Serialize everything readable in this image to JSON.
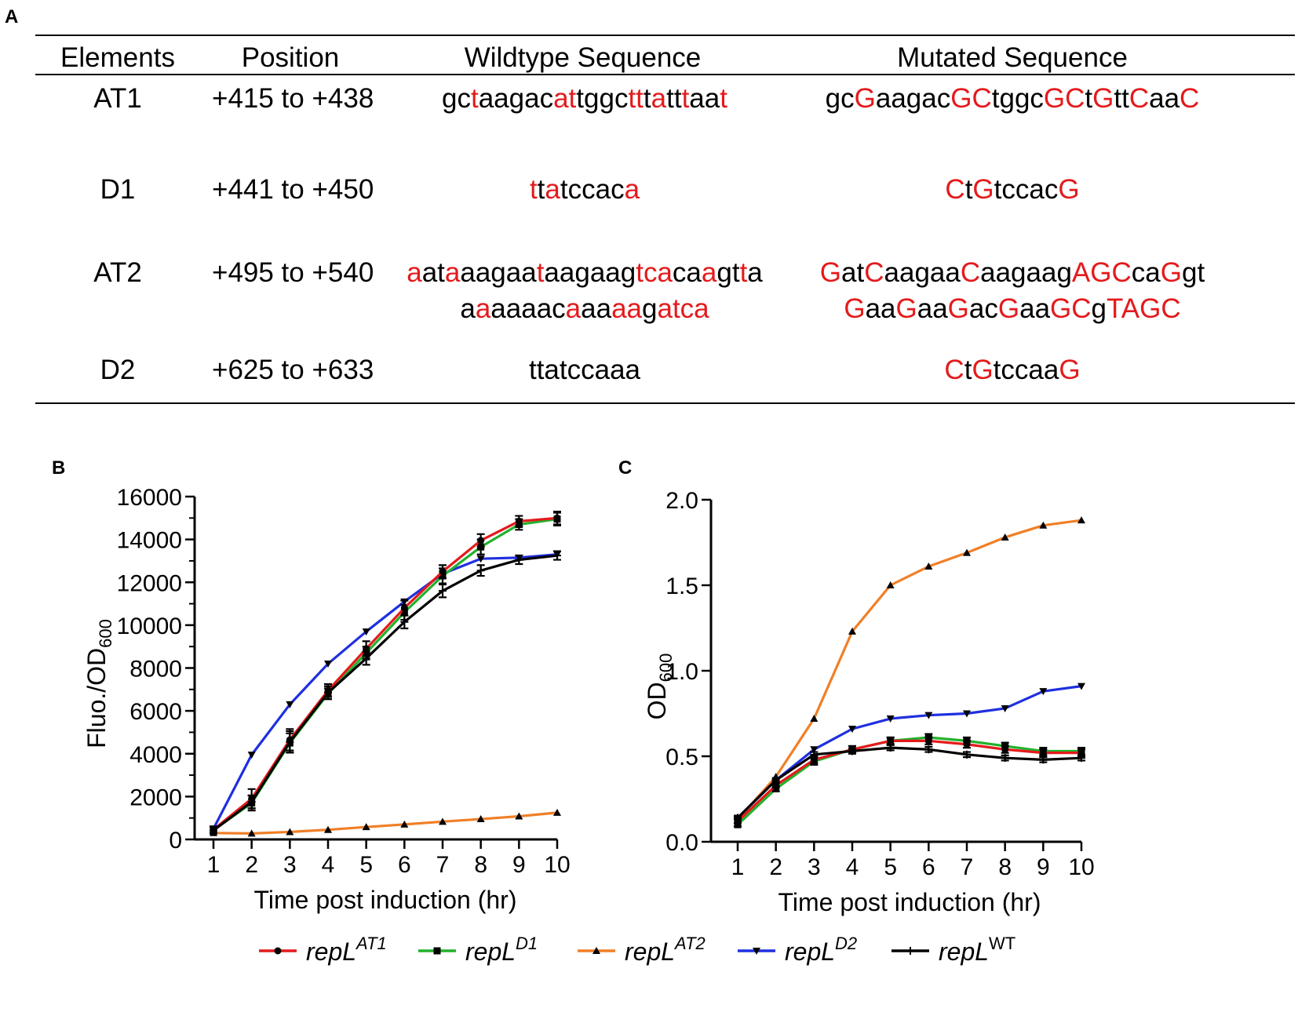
{
  "panels": {
    "a": "A",
    "b": "B",
    "c": "C"
  },
  "table": {
    "headers": {
      "elements": "Elements",
      "position": "Position",
      "wildtype": "Wildtype Sequence",
      "mutated": "Mutated Sequence"
    },
    "rows": [
      {
        "element": "AT1",
        "position": "+415 to +438",
        "wildtype": [
          [
            [
              "gc",
              false
            ],
            [
              "t",
              true
            ],
            [
              "aagac",
              false
            ],
            [
              "at",
              true
            ],
            [
              "tggc",
              false
            ],
            [
              "tt",
              true
            ],
            [
              "t",
              false
            ],
            [
              "a",
              true
            ],
            [
              "tt",
              false
            ],
            [
              "t",
              true
            ],
            [
              "aa",
              false
            ],
            [
              "t",
              true
            ]
          ]
        ],
        "mutated": [
          [
            [
              "gc",
              false
            ],
            [
              "G",
              true
            ],
            [
              "aagac",
              false
            ],
            [
              "GC",
              true
            ],
            [
              "tggc",
              false
            ],
            [
              "GC",
              true
            ],
            [
              "t",
              false
            ],
            [
              "G",
              true
            ],
            [
              "tt",
              false
            ],
            [
              "C",
              true
            ],
            [
              "aa",
              false
            ],
            [
              "C",
              true
            ]
          ]
        ]
      },
      {
        "element": "D1",
        "position": "+441 to +450",
        "wildtype": [
          [
            [
              "t",
              true
            ],
            [
              "t",
              false
            ],
            [
              "a",
              true
            ],
            [
              "tccac",
              false
            ],
            [
              "a",
              true
            ]
          ]
        ],
        "mutated": [
          [
            [
              "C",
              true
            ],
            [
              "t",
              false
            ],
            [
              "G",
              true
            ],
            [
              "tccac",
              false
            ],
            [
              "G",
              true
            ]
          ]
        ]
      },
      {
        "element": "AT2",
        "position": "+495 to +540",
        "wildtype": [
          [
            [
              "a",
              true
            ],
            [
              "at",
              false
            ],
            [
              "a",
              true
            ],
            [
              "aagaa",
              false
            ],
            [
              "t",
              true
            ],
            [
              "aagaag",
              false
            ],
            [
              "tca",
              true
            ],
            [
              "ca",
              false
            ],
            [
              "a",
              true
            ],
            [
              "gt",
              false
            ],
            [
              "t",
              true
            ],
            [
              "a",
              false
            ]
          ],
          [
            [
              "a",
              false
            ],
            [
              "a",
              true
            ],
            [
              "aaaac",
              false
            ],
            [
              "a",
              true
            ],
            [
              "aa",
              false
            ],
            [
              "aa",
              true
            ],
            [
              "g",
              false
            ],
            [
              "atca",
              true
            ]
          ]
        ],
        "mutated": [
          [
            [
              "G",
              true
            ],
            [
              "at",
              false
            ],
            [
              "C",
              true
            ],
            [
              "aagaa",
              false
            ],
            [
              "C",
              true
            ],
            [
              "aagaag",
              false
            ],
            [
              "AGC",
              true
            ],
            [
              "ca",
              false
            ],
            [
              "G",
              true
            ],
            [
              "gt",
              false
            ]
          ],
          [
            [
              "G",
              true
            ],
            [
              "aa",
              false
            ],
            [
              "G",
              true
            ],
            [
              "aa",
              false
            ],
            [
              "G",
              true
            ],
            [
              "ac",
              false
            ],
            [
              "G",
              true
            ],
            [
              "aa",
              false
            ],
            [
              "GC",
              true
            ],
            [
              "g",
              false
            ],
            [
              "TAGC",
              true
            ]
          ]
        ]
      },
      {
        "element": "D2",
        "position": "+625 to +633",
        "wildtype": [
          [
            [
              "ttatccaaa",
              false
            ]
          ]
        ],
        "mutated": [
          [
            [
              "C",
              true
            ],
            [
              "t",
              false
            ],
            [
              "G",
              true
            ],
            [
              "tccaa",
              false
            ],
            [
              "G",
              true
            ]
          ]
        ]
      }
    ]
  },
  "colors": {
    "AT1": "#e41a1c",
    "D1": "#22b22c",
    "AT2": "#f07f27",
    "D2": "#1f2fe0",
    "WT": "#000000",
    "red_text": "#e41a1c"
  },
  "legend": [
    {
      "key": "AT1",
      "base": "repL",
      "sup": "AT1",
      "italic_sup": true,
      "marker": "circle"
    },
    {
      "key": "D1",
      "base": "repL",
      "sup": "D1",
      "italic_sup": true,
      "marker": "square"
    },
    {
      "key": "AT2",
      "base": "repL",
      "sup": "AT2",
      "italic_sup": true,
      "marker": "triangle-up"
    },
    {
      "key": "D2",
      "base": "repL",
      "sup": "D2",
      "italic_sup": true,
      "marker": "triangle-down"
    },
    {
      "key": "WT",
      "base": "repL",
      "sup": "WT",
      "italic_sup": false,
      "marker": "plus"
    }
  ],
  "chart_data": [
    {
      "type": "line",
      "panel": "B",
      "xlabel": "Time post induction (hr)",
      "ylabel": "Fluo./OD",
      "ylabel_sub": "600",
      "x": [
        1,
        2,
        3,
        4,
        5,
        6,
        7,
        8,
        9,
        10
      ],
      "xlim": [
        1,
        10
      ],
      "ylim": [
        0,
        16000
      ],
      "yticks": [
        0,
        2000,
        4000,
        6000,
        8000,
        10000,
        12000,
        14000,
        16000
      ],
      "series": [
        {
          "key": "D2",
          "values": [
            500,
            3950,
            6300,
            8200,
            9700,
            11100,
            12400,
            13100,
            13150,
            13300
          ],
          "errors": [
            0,
            0,
            0,
            0,
            0,
            0,
            0,
            0,
            0,
            0
          ]
        },
        {
          "key": "AT2",
          "values": [
            300,
            280,
            350,
            450,
            580,
            700,
            830,
            950,
            1080,
            1250
          ],
          "errors": [
            0,
            0,
            0,
            0,
            0,
            0,
            0,
            0,
            0,
            0
          ]
        },
        {
          "key": "D1",
          "values": [
            430,
            1700,
            4500,
            6800,
            8700,
            10600,
            12300,
            13650,
            14700,
            14950
          ],
          "errors": [
            150,
            350,
            450,
            250,
            300,
            350,
            350,
            350,
            250,
            300
          ]
        },
        {
          "key": "AT1",
          "values": [
            460,
            1900,
            4650,
            6950,
            8900,
            10800,
            12500,
            13950,
            14850,
            15000
          ],
          "errors": [
            150,
            450,
            500,
            300,
            350,
            350,
            300,
            300,
            250,
            300
          ]
        },
        {
          "key": "WT",
          "values": [
            420,
            1750,
            4550,
            6850,
            8450,
            10150,
            11600,
            12550,
            13050,
            13250
          ],
          "errors": [
            150,
            300,
            500,
            300,
            300,
            300,
            300,
            250,
            200,
            200
          ]
        }
      ]
    },
    {
      "type": "line",
      "panel": "C",
      "xlabel": "Time post induction (hr)",
      "ylabel": "OD",
      "ylabel_sub": "600",
      "x": [
        1,
        2,
        3,
        4,
        5,
        6,
        7,
        8,
        9,
        10
      ],
      "xlim": [
        1,
        10
      ],
      "ylim": [
        0,
        2.0
      ],
      "yticks": [
        0.0,
        0.5,
        1.0,
        1.5,
        2.0
      ],
      "ytick_labels": [
        "0.0",
        "0.5",
        "1.0",
        "1.5",
        "2.0"
      ],
      "series": [
        {
          "key": "AT2",
          "values": [
            0.13,
            0.38,
            0.72,
            1.23,
            1.5,
            1.61,
            1.69,
            1.78,
            1.85,
            1.88
          ],
          "errors": [
            0,
            0,
            0,
            0,
            0,
            0,
            0,
            0,
            0,
            0
          ]
        },
        {
          "key": "D2",
          "values": [
            0.14,
            0.36,
            0.54,
            0.66,
            0.72,
            0.74,
            0.75,
            0.78,
            0.88,
            0.91
          ],
          "errors": [
            0,
            0,
            0,
            0,
            0,
            0,
            0,
            0,
            0,
            0
          ]
        },
        {
          "key": "D1",
          "values": [
            0.1,
            0.31,
            0.47,
            0.54,
            0.59,
            0.61,
            0.59,
            0.56,
            0.53,
            0.53
          ],
          "errors": [
            0.01,
            0.015,
            0.02,
            0.02,
            0.02,
            0.02,
            0.02,
            0.02,
            0.02,
            0.02
          ]
        },
        {
          "key": "AT1",
          "values": [
            0.12,
            0.33,
            0.48,
            0.54,
            0.59,
            0.59,
            0.57,
            0.54,
            0.52,
            0.52
          ],
          "errors": [
            0.01,
            0.015,
            0.02,
            0.02,
            0.02,
            0.02,
            0.02,
            0.02,
            0.02,
            0.02
          ]
        },
        {
          "key": "WT",
          "values": [
            0.14,
            0.36,
            0.51,
            0.53,
            0.55,
            0.54,
            0.51,
            0.49,
            0.48,
            0.49
          ],
          "errors": [
            0.01,
            0.01,
            0.015,
            0.015,
            0.015,
            0.015,
            0.015,
            0.015,
            0.015,
            0.015
          ]
        }
      ]
    }
  ]
}
